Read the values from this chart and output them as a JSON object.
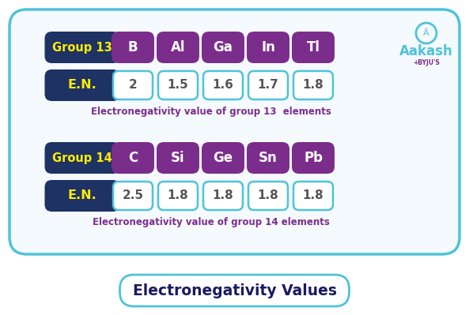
{
  "bg_color": "#ffffff",
  "card_bg": "#f5faff",
  "dark_blue": "#1e3264",
  "purple_elem": "#7b2d8b",
  "cyan_border": "#4fc3d8",
  "yellow": "#ffee00",
  "white": "#ffffff",
  "purple_text": "#7b2d8b",
  "en_text_color": "#555555",
  "group13_label": "Group 13",
  "group13_elements": [
    "B",
    "Al",
    "Ga",
    "In",
    "Tl"
  ],
  "group13_en": [
    "2",
    "1.5",
    "1.6",
    "1.7",
    "1.8"
  ],
  "group13_caption": "Electronegativity value of group 13  elements",
  "group14_label": "Group 14",
  "group14_elements": [
    "C",
    "Si",
    "Ge",
    "Sn",
    "Pb"
  ],
  "group14_en": [
    "2.5",
    "1.8",
    "1.8",
    "1.8",
    "1.8"
  ],
  "group14_caption": "Electronegativity value of group 14 elements",
  "en_label": "E.N.",
  "title": "Electronegativity Values",
  "aakash_color": "#00bcd4",
  "aakash_purple": "#7b2d8b"
}
